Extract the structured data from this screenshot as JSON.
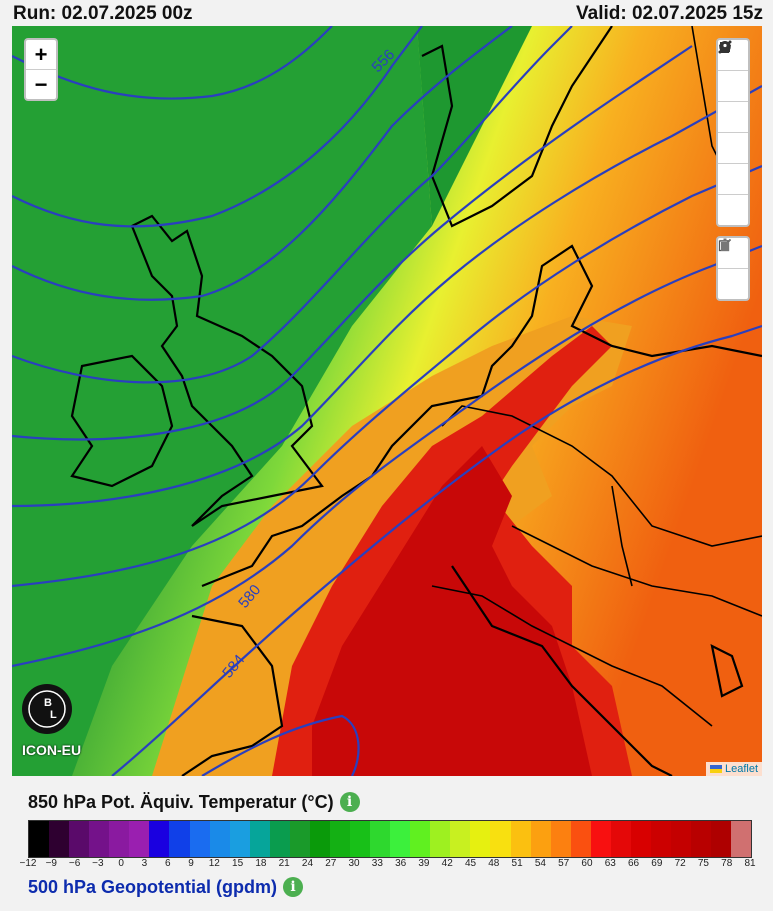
{
  "header": {
    "run": "Run: 02.07.2025 00z",
    "valid": "Valid: 02.07.2025 15z"
  },
  "map": {
    "model_label": "ICON-EU",
    "logo_letters": {
      "top": "B",
      "left": "L"
    },
    "attribution": "Leaflet",
    "zoom_in": "+",
    "zoom_out": "−",
    "contour_labels": [
      "556",
      "580",
      "584"
    ],
    "draw_tools": [
      "polyline-icon",
      "polygon-icon",
      "rectangle-icon",
      "circle-icon",
      "marker-icon",
      "circlemarker-icon"
    ],
    "edit_tools": [
      "edit-icon",
      "trash-icon"
    ]
  },
  "legend": {
    "title": "850 hPa Pot. Äquiv. Temperatur (°C)",
    "subtitle": "500 hPa Geopotential (gpdm)",
    "colors": [
      "#000000",
      "#2e0030",
      "#5a0a6a",
      "#74128a",
      "#8a1aa0",
      "#9a1fb0",
      "#1a00e0",
      "#1040e8",
      "#1a6cf0",
      "#1a8ae8",
      "#1a9ee0",
      "#06a59a",
      "#0a9c4e",
      "#1a9a2a",
      "#0a9a0a",
      "#14b014",
      "#18c018",
      "#2ed82e",
      "#3cf03c",
      "#60f020",
      "#9ef020",
      "#c8f020",
      "#e6f010",
      "#f8e010",
      "#fbc010",
      "#fca010",
      "#fc8010",
      "#fa5010",
      "#f81010",
      "#e40808",
      "#d80000",
      "#cc0000",
      "#c40000",
      "#b80000",
      "#ae0000",
      "#d07070"
    ],
    "ticks": [
      "−12",
      "−9",
      "−6",
      "−3",
      "0",
      "3",
      "6",
      "9",
      "12",
      "15",
      "18",
      "21",
      "24",
      "27",
      "30",
      "33",
      "36",
      "39",
      "42",
      "45",
      "48",
      "51",
      "54",
      "57",
      "60",
      "63",
      "66",
      "69",
      "72",
      "75",
      "78",
      "81"
    ]
  }
}
